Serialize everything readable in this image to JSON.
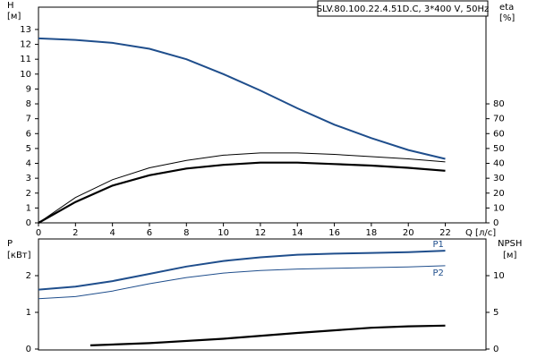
{
  "chart_data": [
    {
      "type": "line",
      "title": "SLV.80.100.22.4.51D.C, 3*400 V, 50Hz",
      "xlabel": "Q [л/с]",
      "ylabel": "H",
      "yunit": "[м]",
      "y2label": "eta",
      "y2unit": "[%]",
      "x": [
        0,
        2,
        4,
        6,
        8,
        10,
        12,
        14,
        16,
        18,
        20,
        22
      ],
      "xlim": [
        0,
        24.2
      ],
      "xticks": [
        0,
        2,
        4,
        6,
        8,
        10,
        12,
        14,
        16,
        18,
        20,
        22
      ],
      "ylim": [
        0,
        14.5
      ],
      "yticks": [
        0,
        1,
        2,
        3,
        4,
        5,
        6,
        7,
        8,
        9,
        10,
        11,
        12,
        13
      ],
      "y2lim": [
        0,
        145
      ],
      "y2ticks": [
        0,
        10,
        20,
        30,
        40,
        50,
        60,
        70,
        80
      ],
      "grid": false,
      "series": [
        {
          "color": "#1f4e8c",
          "values": [
            12.4,
            12.3,
            12.1,
            11.7,
            11.0,
            10.0,
            8.9,
            7.7,
            6.6,
            5.7,
            4.9,
            4.3
          ]
        },
        {
          "color": "#000000",
          "axis": "y2",
          "values": [
            0,
            17,
            29,
            37,
            42,
            45.5,
            47,
            47,
            46,
            44.5,
            43,
            41
          ]
        },
        {
          "color": "#000000",
          "axis": "y2",
          "values": [
            0,
            14,
            25,
            32,
            36.5,
            39,
            40.5,
            40.5,
            39.5,
            38.5,
            37,
            35
          ]
        }
      ]
    },
    {
      "type": "line",
      "ylabel": "P",
      "yunit": "[кВт]",
      "y2label": "NPSH",
      "y2unit": "[м]",
      "x": [
        0,
        2,
        4,
        6,
        8,
        10,
        12,
        14,
        16,
        18,
        20,
        22
      ],
      "xlim": [
        0,
        24.2
      ],
      "ylim": [
        0,
        3
      ],
      "yticks": [
        0,
        1,
        2
      ],
      "y2lim": [
        0,
        15
      ],
      "y2ticks": [
        0,
        5,
        10
      ],
      "grid": false,
      "series": [
        {
          "name": "P1",
          "color": "#1f4e8c",
          "values": [
            1.62,
            1.7,
            1.85,
            2.05,
            2.25,
            2.4,
            2.5,
            2.57,
            2.6,
            2.62,
            2.64,
            2.68
          ]
        },
        {
          "name": "P2",
          "color": "#1f4e8c",
          "values": [
            1.37,
            1.43,
            1.58,
            1.78,
            1.95,
            2.07,
            2.14,
            2.18,
            2.2,
            2.22,
            2.24,
            2.27
          ]
        },
        {
          "color": "#000000",
          "axis": "y2",
          "x": [
            2.8,
            6,
            10,
            14,
            18,
            20,
            22
          ],
          "values": [
            0.5,
            0.8,
            1.4,
            2.2,
            2.9,
            3.1,
            3.2
          ]
        }
      ]
    }
  ]
}
